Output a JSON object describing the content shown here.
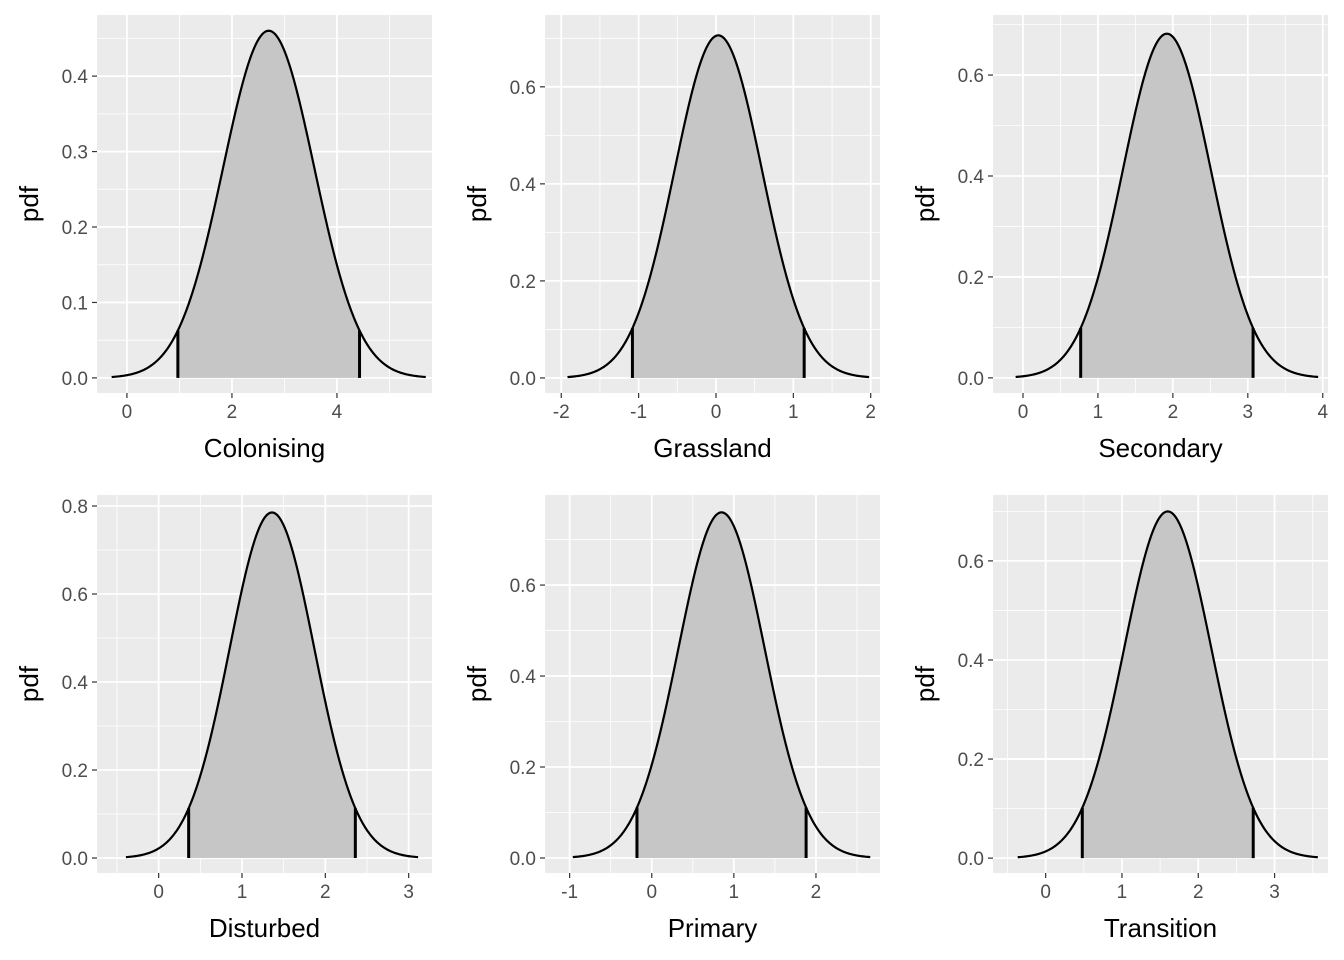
{
  "chart_data": [
    {
      "type": "area",
      "title": "",
      "xlabel": "Colonising",
      "ylabel": "pdf",
      "dist": "normal",
      "mean": 2.7,
      "sd": 0.867,
      "interval": [
        0.97,
        4.43
      ],
      "xlim": [
        -0.57,
        5.81
      ],
      "ylim": [
        -0.02,
        0.481
      ],
      "xticks": [
        0,
        2,
        4
      ],
      "xtick_labels": [
        "0",
        "2",
        "4"
      ],
      "xminor": [
        1,
        3,
        5
      ],
      "yticks": [
        0,
        0.1,
        0.2,
        0.3,
        0.4
      ],
      "ytick_labels": [
        "0.0",
        "0.1",
        "0.2",
        "0.3",
        "0.4"
      ],
      "grid": true
    },
    {
      "type": "area",
      "title": "",
      "xlabel": "Grassland",
      "ylabel": "pdf",
      "dist": "normal",
      "mean": 0.03,
      "sd": 0.565,
      "interval": [
        -1.08,
        1.14
      ],
      "xlim": [
        -2.21,
        2.12
      ],
      "ylim": [
        -0.031,
        0.748
      ],
      "xticks": [
        -2,
        -1,
        0,
        1,
        2
      ],
      "xtick_labels": [
        "-2",
        "-1",
        "0",
        "1",
        "2"
      ],
      "xminor": [
        -1.5,
        -0.5,
        0.5,
        1.5
      ],
      "yticks": [
        0,
        0.2,
        0.4,
        0.6
      ],
      "ytick_labels": [
        "0.0",
        "0.2",
        "0.4",
        "0.6"
      ],
      "grid": true
    },
    {
      "type": "area",
      "title": "",
      "xlabel": "Secondary",
      "ylabel": "pdf",
      "dist": "normal",
      "mean": 1.92,
      "sd": 0.585,
      "interval": [
        0.77,
        3.07
      ],
      "xlim": [
        -0.4,
        4.07
      ],
      "ylim": [
        -0.03,
        0.719
      ],
      "xticks": [
        0,
        1,
        2,
        3,
        4
      ],
      "xtick_labels": [
        "0",
        "1",
        "2",
        "3",
        "4"
      ],
      "xminor": [
        0.5,
        1.5,
        2.5,
        3.5
      ],
      "yticks": [
        0,
        0.2,
        0.4,
        0.6
      ],
      "ytick_labels": [
        "0.0",
        "0.2",
        "0.4",
        "0.6"
      ],
      "grid": true
    },
    {
      "type": "area",
      "title": "",
      "xlabel": "Disturbed",
      "ylabel": "pdf",
      "dist": "normal",
      "mean": 1.36,
      "sd": 0.508,
      "interval": [
        0.36,
        2.36
      ],
      "xlim": [
        -0.74,
        3.28
      ],
      "ylim": [
        -0.034,
        0.825
      ],
      "xticks": [
        0,
        1,
        2,
        3
      ],
      "xtick_labels": [
        "0",
        "1",
        "2",
        "3"
      ],
      "xminor": [
        -0.5,
        0.5,
        1.5,
        2.5
      ],
      "yticks": [
        0,
        0.2,
        0.4,
        0.6,
        0.8
      ],
      "ytick_labels": [
        "0.0",
        "0.2",
        "0.4",
        "0.6",
        "0.8"
      ],
      "grid": true
    },
    {
      "type": "area",
      "title": "",
      "xlabel": "Primary",
      "ylabel": "pdf",
      "dist": "normal",
      "mean": 0.85,
      "sd": 0.525,
      "interval": [
        -0.18,
        1.88
      ],
      "xlim": [
        -1.3,
        2.78
      ],
      "ylim": [
        -0.033,
        0.798
      ],
      "xticks": [
        -1,
        0,
        1,
        2
      ],
      "xtick_labels": [
        "-1",
        "0",
        "1",
        "2"
      ],
      "xminor": [
        -0.5,
        0.5,
        1.5,
        2.5
      ],
      "yticks": [
        0,
        0.2,
        0.4,
        0.6
      ],
      "ytick_labels": [
        "0.0",
        "0.2",
        "0.4",
        "0.6"
      ],
      "grid": true
    },
    {
      "type": "area",
      "title": "",
      "xlabel": "Transition",
      "ylabel": "pdf",
      "dist": "normal",
      "mean": 1.6,
      "sd": 0.57,
      "interval": [
        0.48,
        2.72
      ],
      "xlim": [
        -0.69,
        3.7
      ],
      "ylim": [
        -0.03,
        0.733
      ],
      "xticks": [
        0,
        1,
        2,
        3
      ],
      "xtick_labels": [
        "0",
        "1",
        "2",
        "3"
      ],
      "xminor": [
        -0.5,
        0.5,
        1.5,
        2.5,
        3.5
      ],
      "yticks": [
        0,
        0.2,
        0.4,
        0.6
      ],
      "ytick_labels": [
        "0.0",
        "0.2",
        "0.4",
        "0.6"
      ],
      "grid": true
    }
  ],
  "colors": {
    "panel": "#EBEBEB",
    "grid": "#FFFFFF",
    "fill": "#C6C6C6",
    "line": "#000000",
    "tick": "#4D4D4D"
  }
}
